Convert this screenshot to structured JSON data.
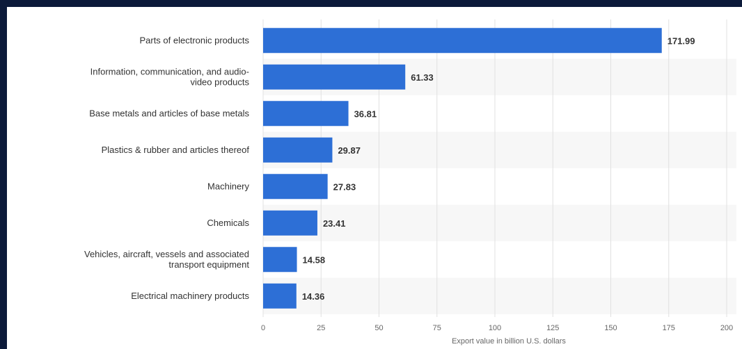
{
  "chart_data": {
    "type": "bar",
    "orientation": "horizontal",
    "categories": [
      [
        "Parts of electronic products"
      ],
      [
        "Information, communication, and audio-",
        "video products"
      ],
      [
        "Base metals and articles of base metals"
      ],
      [
        "Plastics & rubber and articles thereof"
      ],
      [
        "Machinery"
      ],
      [
        "Chemicals"
      ],
      [
        "Vehicles, aircraft, vessels and associated",
        "transport equipment"
      ],
      [
        "Electrical machinery products"
      ]
    ],
    "values": [
      171.99,
      61.33,
      36.81,
      29.87,
      27.83,
      23.41,
      14.58,
      14.36
    ],
    "value_labels": [
      "171.99",
      "61.33",
      "36.81",
      "29.87",
      "27.83",
      "23.41",
      "14.58",
      "14.36"
    ],
    "xlim": [
      0,
      200
    ],
    "xticks": [
      0,
      25,
      50,
      75,
      100,
      125,
      150,
      175,
      200
    ],
    "xlabel": "Export value in billion U.S. dollars",
    "title": "",
    "grid": "vertical",
    "bar_color": "#2d6fd6",
    "band_color": "#f7f7f7"
  }
}
